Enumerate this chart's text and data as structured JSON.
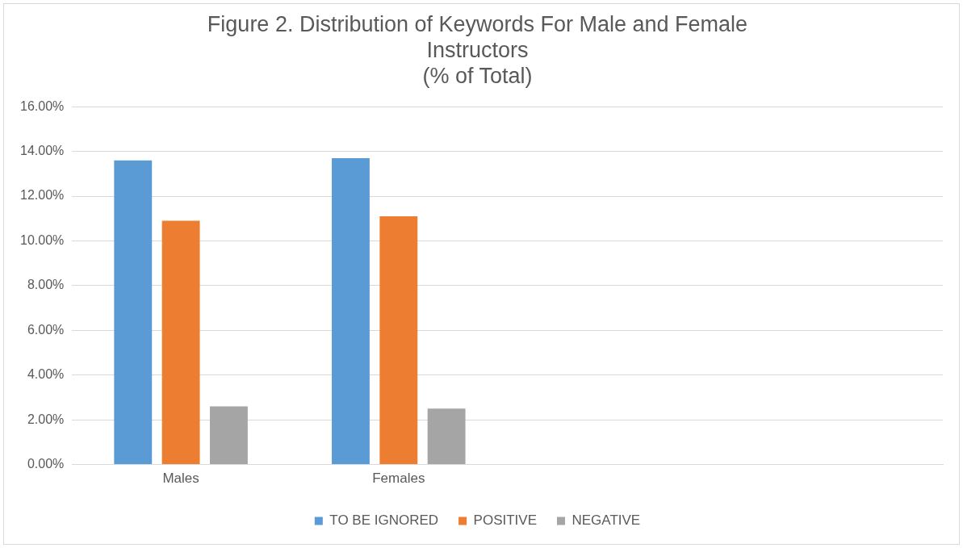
{
  "chart_data": {
    "type": "bar",
    "title": "Figure 2. Distribution of Keywords For Male and Female\nInstructors\n(% of Total)",
    "categories": [
      "Males",
      "Females",
      null,
      null
    ],
    "series": [
      {
        "name": "TO BE IGNORED",
        "color": "#5b9bd5",
        "values": [
          13.6,
          13.7,
          null,
          null
        ]
      },
      {
        "name": "POSITIVE",
        "color": "#ed7d31",
        "values": [
          10.9,
          11.1,
          null,
          null
        ]
      },
      {
        "name": "NEGATIVE",
        "color": "#a5a5a5",
        "values": [
          2.6,
          2.5,
          null,
          null
        ]
      }
    ],
    "ylim": [
      0,
      16
    ],
    "yticks": [
      {
        "value": 0,
        "label": "0.00%"
      },
      {
        "value": 2,
        "label": "2.00%"
      },
      {
        "value": 4,
        "label": "4.00%"
      },
      {
        "value": 6,
        "label": "6.00%"
      },
      {
        "value": 8,
        "label": "8.00%"
      },
      {
        "value": 10,
        "label": "10.00%"
      },
      {
        "value": 12,
        "label": "12.00%"
      },
      {
        "value": 14,
        "label": "14.00%"
      },
      {
        "value": 16,
        "label": "16.00%"
      }
    ],
    "grid": "y",
    "legend": "bottom"
  }
}
